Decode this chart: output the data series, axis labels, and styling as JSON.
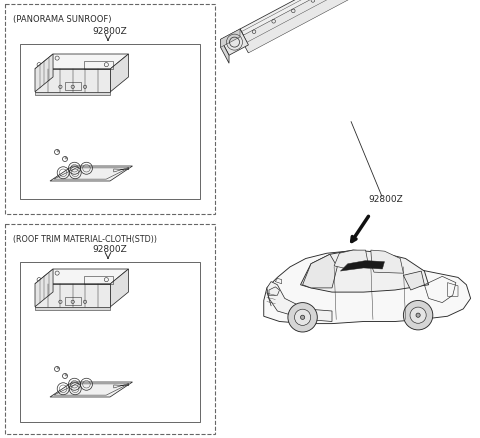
{
  "background_color": "#ffffff",
  "line_color": "#2a2a2a",
  "label1": "(PANORAMA SUNROOF)",
  "label2": "(ROOF TRIM MATERIAL-CLOTH(STD))",
  "part_label": "92800Z",
  "fig_width": 4.8,
  "fig_height": 4.39,
  "dpi": 100
}
